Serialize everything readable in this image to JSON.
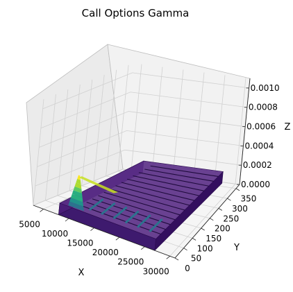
{
  "chart_data": {
    "type": "surface3d",
    "title": "Call Options Gamma",
    "xlabel": "X",
    "ylabel": "Y",
    "zlabel": "Z",
    "x_ticks": [
      "5000",
      "10000",
      "15000",
      "20000",
      "25000",
      "30000"
    ],
    "y_ticks": [
      "0",
      "50",
      "100",
      "150",
      "200",
      "250",
      "300",
      "350"
    ],
    "z_ticks": [
      "0.0000",
      "0.0002",
      "0.0004",
      "0.0006",
      "0.0008",
      "0.0010"
    ],
    "xlim": [
      3000,
      31000
    ],
    "ylim": [
      0,
      370
    ],
    "zlim": [
      0,
      0.0011
    ],
    "grid": true,
    "colormap": "viridis",
    "surface_summary": {
      "x_range": [
        8000,
        27000
      ],
      "y_range": [
        0,
        365
      ],
      "peak": {
        "x": 11000,
        "y": 5,
        "z": 0.00046
      },
      "base_z": 0
    }
  }
}
